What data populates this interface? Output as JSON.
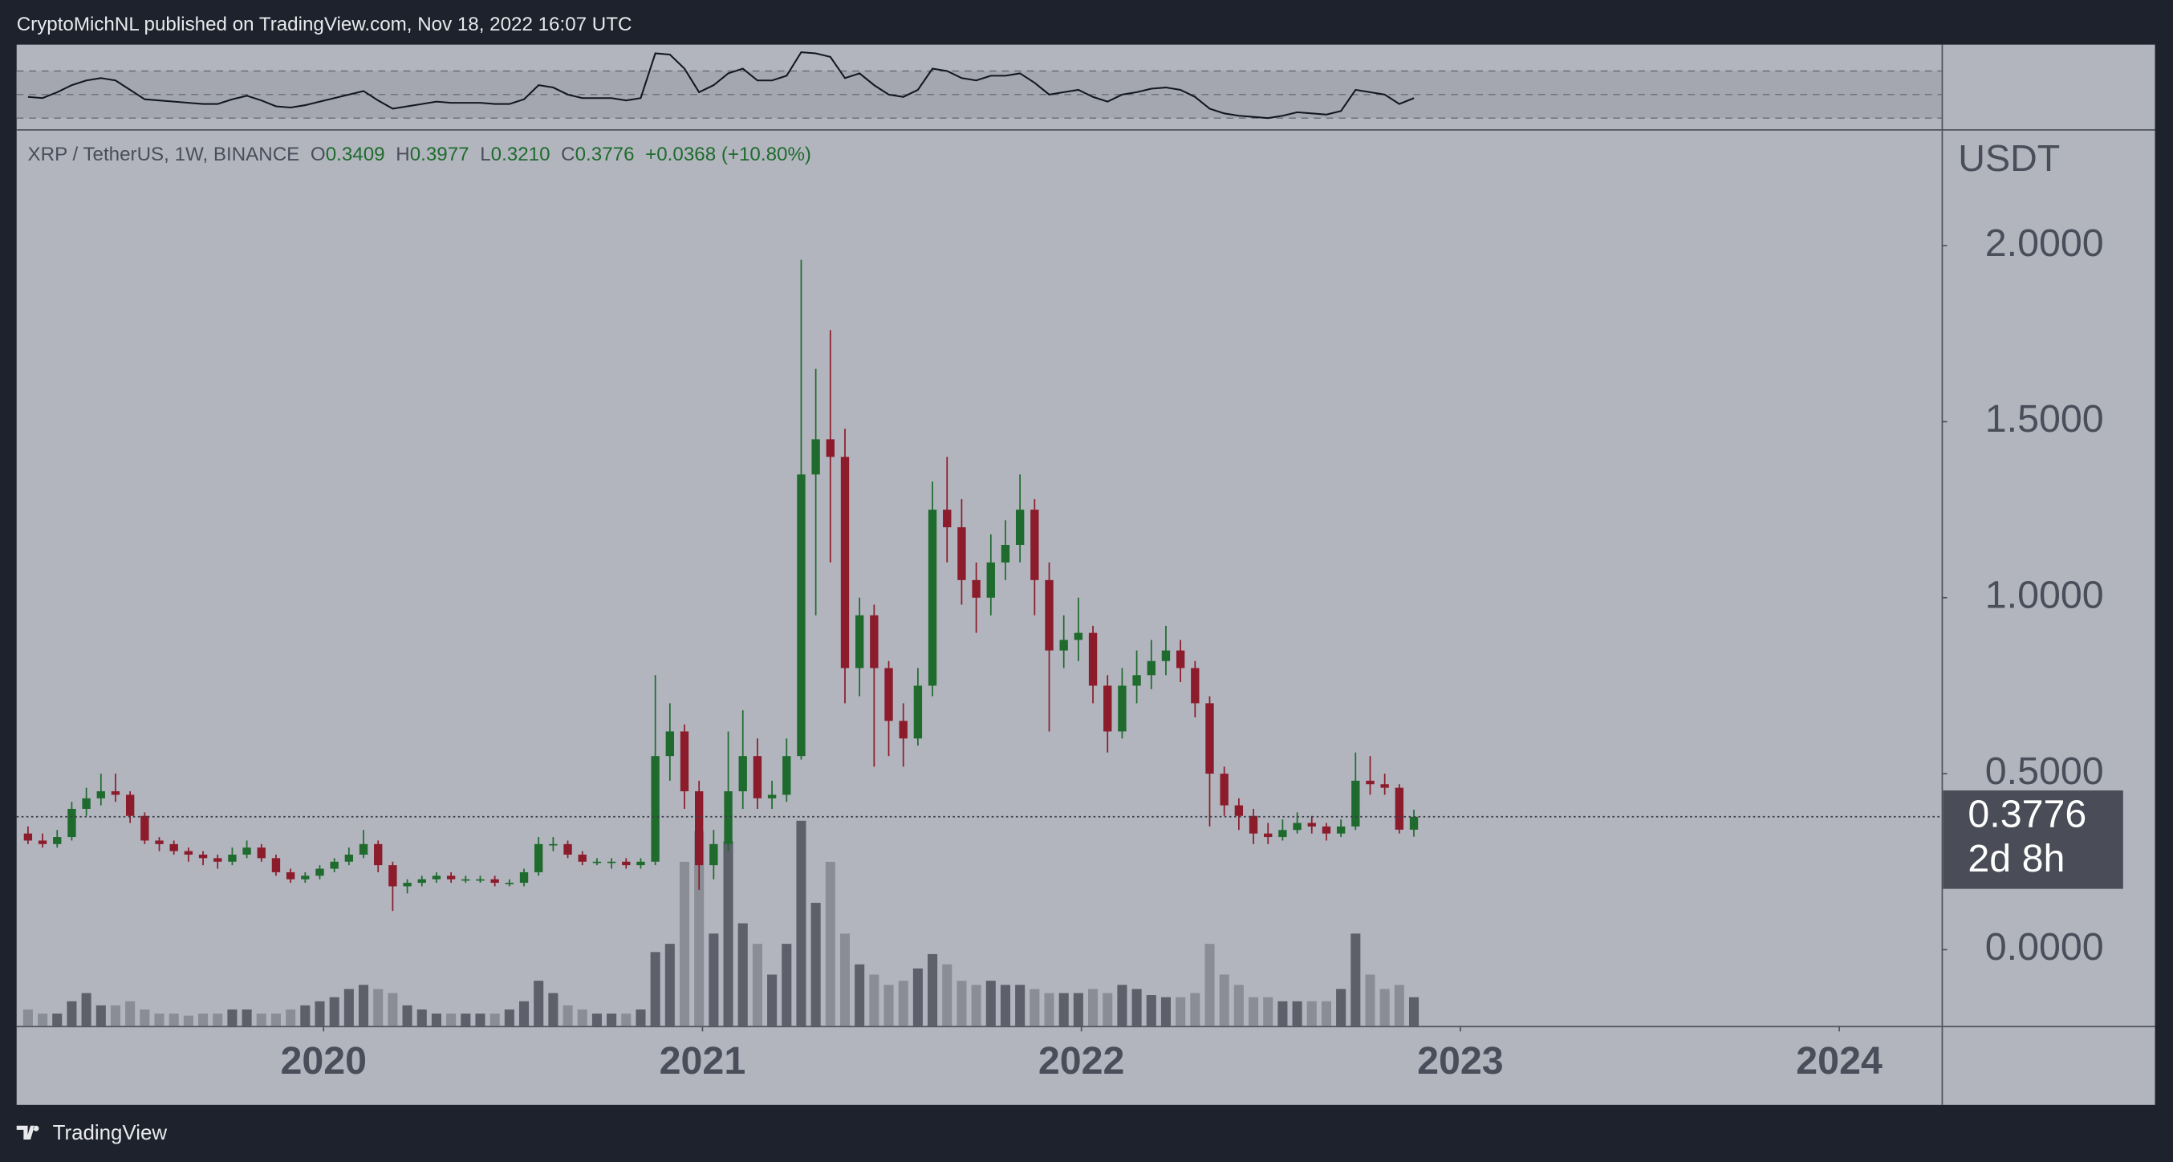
{
  "page": {
    "header": "CryptoMichNL published on TradingView.com, Nov 18, 2022 16:07 UTC",
    "footer": "TradingView"
  },
  "chart_data": {
    "type": "candlestick",
    "symbol": "XRP / TetherUS, 1W, BINANCE",
    "ohlc_legend": [
      {
        "label": "O",
        "value": "0.3409"
      },
      {
        "label": "H",
        "value": "0.3977"
      },
      {
        "label": "L",
        "value": "0.3210"
      },
      {
        "label": "C",
        "value": "0.3776"
      }
    ],
    "change": "+0.0368 (+10.80%)",
    "y_axis_label": "USDT",
    "last_price": 0.3776,
    "countdown": "2d 8h",
    "up_color": "#1e6b2d",
    "down_color": "#8c1c2b",
    "volume_up_color": "#5d606b",
    "volume_down_color": "#8a8d96",
    "rsi_color": "#131722",
    "xlim": [
      2019.19,
      2024.27
    ],
    "xticks": [
      2020,
      2021,
      2022,
      2023,
      2024
    ],
    "ylim": [
      -0.2165,
      2.327
    ],
    "yticks": [
      {
        "value": 0,
        "label": "0.0000"
      },
      {
        "value": 0.5,
        "label": "0.5000"
      },
      {
        "value": 1,
        "label": "1.0000"
      },
      {
        "value": 1.5,
        "label": "1.5000"
      },
      {
        "value": 2,
        "label": "2.0000"
      }
    ],
    "rsi_ylim": [
      20.6,
      92.4
    ],
    "rsi_levels": [
      30,
      50,
      70
    ],
    "x": [
      2019.22,
      2019.2585,
      2019.297,
      2019.3355,
      2019.374,
      2019.4125,
      2019.451,
      2019.4895,
      2019.528,
      2019.5665,
      2019.605,
      2019.6435,
      2019.682,
      2019.7205,
      2019.759,
      2019.7975,
      2019.836,
      2019.8745,
      2019.913,
      2019.9515,
      2019.99,
      2020.0285,
      2020.067,
      2020.1055,
      2020.144,
      2020.1825,
      2020.221,
      2020.2595,
      2020.298,
      2020.3365,
      2020.375,
      2020.4135,
      2020.452,
      2020.4905,
      2020.529,
      2020.5675,
      2020.606,
      2020.6445,
      2020.683,
      2020.7215,
      2020.76,
      2020.7985,
      2020.837,
      2020.8755,
      2020.914,
      2020.9525,
      2020.991,
      2021.0295,
      2021.068,
      2021.1065,
      2021.145,
      2021.1835,
      2021.222,
      2021.2605,
      2021.299,
      2021.3375,
      2021.376,
      2021.4145,
      2021.453,
      2021.4915,
      2021.53,
      2021.5685,
      2021.607,
      2021.6455,
      2021.684,
      2021.7225,
      2021.761,
      2021.7995,
      2021.838,
      2021.8765,
      2021.915,
      2021.9535,
      2021.992,
      2022.0305,
      2022.069,
      2022.1075,
      2022.146,
      2022.1845,
      2022.223,
      2022.2615,
      2022.3,
      2022.3385,
      2022.377,
      2022.4155,
      2022.454,
      2022.4925,
      2022.531,
      2022.5695,
      2022.608,
      2022.6465,
      2022.685,
      2022.7235,
      2022.762,
      2022.8005,
      2022.839,
      2022.8775
    ],
    "open": [
      0.33,
      0.31,
      0.3,
      0.32,
      0.4,
      0.43,
      0.45,
      0.44,
      0.38,
      0.31,
      0.3,
      0.28,
      0.27,
      0.26,
      0.25,
      0.27,
      0.29,
      0.26,
      0.22,
      0.2,
      0.21,
      0.23,
      0.25,
      0.27,
      0.3,
      0.24,
      0.18,
      0.19,
      0.2,
      0.21,
      0.2,
      0.2,
      0.2,
      0.19,
      0.19,
      0.22,
      0.3,
      0.3,
      0.27,
      0.25,
      0.25,
      0.25,
      0.24,
      0.25,
      0.55,
      0.62,
      0.45,
      0.24,
      0.3,
      0.45,
      0.55,
      0.43,
      0.44,
      0.55,
      1.35,
      1.45,
      1.4,
      0.8,
      0.95,
      0.8,
      0.65,
      0.6,
      0.75,
      1.25,
      1.2,
      1.05,
      1.0,
      1.1,
      1.15,
      1.25,
      1.05,
      0.85,
      0.88,
      0.9,
      0.75,
      0.62,
      0.75,
      0.78,
      0.82,
      0.85,
      0.8,
      0.7,
      0.5,
      0.41,
      0.38,
      0.33,
      0.32,
      0.34,
      0.36,
      0.35,
      0.33,
      0.35,
      0.48,
      0.47,
      0.46,
      0.3409
    ],
    "high": [
      0.35,
      0.33,
      0.34,
      0.42,
      0.46,
      0.5,
      0.5,
      0.45,
      0.39,
      0.32,
      0.31,
      0.29,
      0.28,
      0.27,
      0.29,
      0.31,
      0.3,
      0.27,
      0.23,
      0.22,
      0.24,
      0.26,
      0.29,
      0.34,
      0.31,
      0.25,
      0.2,
      0.21,
      0.22,
      0.22,
      0.21,
      0.21,
      0.21,
      0.2,
      0.23,
      0.32,
      0.32,
      0.31,
      0.28,
      0.26,
      0.26,
      0.26,
      0.26,
      0.78,
      0.7,
      0.64,
      0.48,
      0.34,
      0.62,
      0.68,
      0.6,
      0.48,
      0.6,
      1.96,
      1.65,
      1.76,
      1.48,
      1.0,
      0.98,
      0.82,
      0.7,
      0.8,
      1.33,
      1.4,
      1.28,
      1.1,
      1.18,
      1.22,
      1.35,
      1.28,
      1.1,
      0.95,
      1.0,
      0.92,
      0.78,
      0.8,
      0.85,
      0.88,
      0.92,
      0.88,
      0.82,
      0.72,
      0.52,
      0.43,
      0.4,
      0.36,
      0.37,
      0.39,
      0.38,
      0.36,
      0.37,
      0.56,
      0.55,
      0.5,
      0.47,
      0.3977
    ],
    "low": [
      0.3,
      0.29,
      0.29,
      0.31,
      0.38,
      0.41,
      0.42,
      0.36,
      0.3,
      0.28,
      0.27,
      0.25,
      0.24,
      0.23,
      0.24,
      0.26,
      0.25,
      0.21,
      0.19,
      0.19,
      0.2,
      0.22,
      0.24,
      0.26,
      0.22,
      0.11,
      0.16,
      0.18,
      0.19,
      0.19,
      0.19,
      0.19,
      0.18,
      0.18,
      0.18,
      0.21,
      0.28,
      0.26,
      0.24,
      0.24,
      0.23,
      0.23,
      0.23,
      0.24,
      0.48,
      0.4,
      0.17,
      0.2,
      0.28,
      0.4,
      0.4,
      0.4,
      0.42,
      0.54,
      0.95,
      1.1,
      0.7,
      0.72,
      0.52,
      0.55,
      0.52,
      0.58,
      0.72,
      1.1,
      0.98,
      0.9,
      0.95,
      1.05,
      1.1,
      0.95,
      0.62,
      0.8,
      0.82,
      0.7,
      0.56,
      0.6,
      0.7,
      0.74,
      0.78,
      0.76,
      0.66,
      0.35,
      0.38,
      0.34,
      0.3,
      0.3,
      0.31,
      0.33,
      0.33,
      0.31,
      0.32,
      0.34,
      0.44,
      0.44,
      0.33,
      0.321
    ],
    "close": [
      0.31,
      0.3,
      0.32,
      0.4,
      0.43,
      0.45,
      0.44,
      0.38,
      0.31,
      0.3,
      0.28,
      0.27,
      0.26,
      0.25,
      0.27,
      0.29,
      0.26,
      0.22,
      0.2,
      0.21,
      0.23,
      0.25,
      0.27,
      0.3,
      0.24,
      0.18,
      0.19,
      0.2,
      0.21,
      0.2,
      0.2,
      0.2,
      0.19,
      0.19,
      0.22,
      0.3,
      0.3,
      0.27,
      0.25,
      0.25,
      0.25,
      0.24,
      0.25,
      0.55,
      0.62,
      0.45,
      0.24,
      0.3,
      0.45,
      0.55,
      0.43,
      0.44,
      0.55,
      1.35,
      1.45,
      1.4,
      0.8,
      0.95,
      0.8,
      0.65,
      0.6,
      0.75,
      1.25,
      1.2,
      1.05,
      1.0,
      1.1,
      1.15,
      1.25,
      1.05,
      0.85,
      0.88,
      0.9,
      0.75,
      0.62,
      0.75,
      0.78,
      0.82,
      0.85,
      0.8,
      0.7,
      0.5,
      0.41,
      0.38,
      0.33,
      0.32,
      0.34,
      0.36,
      0.35,
      0.33,
      0.35,
      0.48,
      0.47,
      0.46,
      0.3409,
      0.3776
    ],
    "volume": [
      8,
      6,
      6,
      12,
      16,
      10,
      10,
      12,
      8,
      6,
      6,
      5,
      6,
      6,
      8,
      8,
      6,
      6,
      8,
      10,
      12,
      14,
      18,
      20,
      18,
      16,
      10,
      8,
      6,
      6,
      6,
      6,
      6,
      8,
      12,
      22,
      16,
      10,
      8,
      6,
      6,
      6,
      8,
      36,
      40,
      80,
      95,
      45,
      90,
      50,
      40,
      25,
      40,
      100,
      60,
      80,
      45,
      30,
      25,
      20,
      22,
      28,
      35,
      30,
      22,
      20,
      22,
      20,
      20,
      18,
      16,
      16,
      16,
      18,
      16,
      20,
      18,
      15,
      14,
      14,
      16,
      40,
      25,
      20,
      14,
      14,
      12,
      12,
      12,
      12,
      18,
      45,
      25,
      18,
      20,
      14
    ],
    "rsi": [
      48,
      47,
      52,
      58,
      62,
      64,
      62,
      54,
      46,
      45,
      44,
      43,
      42,
      42,
      46,
      49,
      45,
      40,
      39,
      41,
      44,
      47,
      50,
      53,
      45,
      38,
      40,
      42,
      44,
      43,
      43,
      43,
      42,
      42,
      46,
      58,
      56,
      50,
      47,
      47,
      47,
      45,
      47,
      85,
      84,
      72,
      52,
      58,
      68,
      72,
      62,
      62,
      66,
      86,
      85,
      82,
      64,
      68,
      58,
      50,
      48,
      54,
      72,
      70,
      64,
      62,
      66,
      66,
      68,
      60,
      50,
      52,
      54,
      48,
      44,
      50,
      52,
      55,
      56,
      54,
      48,
      38,
      34,
      32,
      31,
      30,
      32,
      35,
      34,
      33,
      36,
      54,
      52,
      50,
      42,
      47
    ]
  }
}
